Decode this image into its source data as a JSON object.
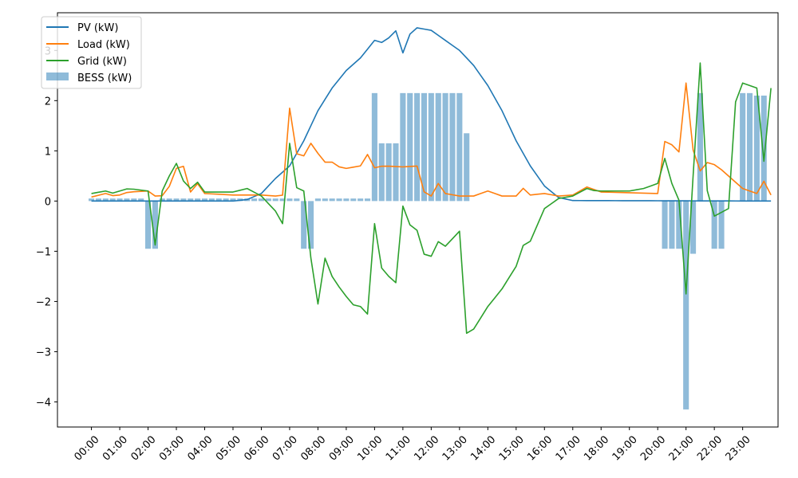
{
  "chart_data": {
    "type": "line+bar",
    "title": "",
    "xlabel": "",
    "ylabel": "",
    "ylim": [
      -4.5,
      3.75
    ],
    "xlim_hours": [
      -1.2,
      24.25
    ],
    "x_ticks": [
      "00:00",
      "01:00",
      "02:00",
      "03:00",
      "04:00",
      "05:00",
      "06:00",
      "07:00",
      "08:00",
      "09:00",
      "10:00",
      "11:00",
      "12:00",
      "13:00",
      "14:00",
      "15:00",
      "16:00",
      "17:00",
      "18:00",
      "19:00",
      "20:00",
      "21:00",
      "22:00",
      "23:00"
    ],
    "y_ticks": [
      3,
      2,
      1,
      0,
      -1,
      -2,
      -3,
      -4
    ],
    "y_tick_labels": [
      "3",
      "2",
      "1",
      "0",
      "−1",
      "−2",
      "−3",
      "−4"
    ],
    "grid": false,
    "legend": {
      "placement": "top-left",
      "entries": [
        "PV (kW)",
        "Load (kW)",
        "Grid (kW)",
        "BESS (kW)"
      ]
    },
    "colors": {
      "pv": "#1f77b4",
      "load": "#ff7f0e",
      "grid": "#2ca02c",
      "bess": "#1f77b4",
      "bess_alpha": 0.5
    },
    "series": [
      {
        "name": "PV (kW)",
        "points": [
          [
            0,
            0
          ],
          [
            5,
            0
          ],
          [
            5.5,
            0.03
          ],
          [
            6,
            0.15
          ],
          [
            6.5,
            0.45
          ],
          [
            7,
            0.7
          ],
          [
            7.5,
            1.2
          ],
          [
            8,
            1.8
          ],
          [
            8.5,
            2.25
          ],
          [
            9,
            2.6
          ],
          [
            9.5,
            2.85
          ],
          [
            10,
            3.2
          ],
          [
            10.3,
            3.15
          ],
          [
            10.6,
            3.3
          ],
          [
            10.8,
            3.42
          ],
          [
            11,
            2.95
          ],
          [
            11.2,
            3.3
          ],
          [
            11.5,
            3.45
          ],
          [
            12,
            3.4
          ],
          [
            12.5,
            3.2
          ],
          [
            13,
            3.0
          ],
          [
            13.5,
            2.7
          ],
          [
            14,
            2.3
          ],
          [
            14.5,
            1.8
          ],
          [
            15,
            1.2
          ],
          [
            15.5,
            0.7
          ],
          [
            16,
            0.3
          ],
          [
            16.5,
            0.07
          ],
          [
            17,
            0.01
          ],
          [
            24,
            0
          ]
        ]
      },
      {
        "name": "Load (kW)",
        "points": [
          [
            0,
            0.08
          ],
          [
            0.5,
            0.15
          ],
          [
            0.8,
            0.1
          ],
          [
            0.9,
            0.3
          ],
          [
            1.0,
            0.12
          ],
          [
            1.3,
            0.18
          ],
          [
            2,
            0.2
          ],
          [
            2.3,
            0.08
          ],
          [
            2.6,
            0.12
          ],
          [
            2.8,
            0.35
          ],
          [
            3,
            0.65
          ],
          [
            3.3,
            0.7
          ],
          [
            3.5,
            0.18
          ],
          [
            3.8,
            0.38
          ],
          [
            4,
            0.15
          ],
          [
            5,
            0.12
          ],
          [
            6,
            0.12
          ],
          [
            6.5,
            0.1
          ],
          [
            6.8,
            0.12
          ],
          [
            7,
            1.85
          ],
          [
            7.2,
            0.95
          ],
          [
            7.5,
            0.9
          ],
          [
            7.8,
            1.2
          ],
          [
            8,
            0.95
          ],
          [
            8.2,
            0.75
          ],
          [
            8.4,
            0.85
          ],
          [
            8.6,
            0.7
          ],
          [
            9,
            0.65
          ],
          [
            9.5,
            0.7
          ],
          [
            9.7,
            1.02
          ],
          [
            9.9,
            0.65
          ],
          [
            10.3,
            0.7
          ],
          [
            11,
            0.68
          ],
          [
            11.6,
            0.7
          ],
          [
            11.7,
            0.2
          ],
          [
            12,
            0.1
          ],
          [
            12.3,
            0.4
          ],
          [
            12.5,
            0.15
          ],
          [
            13,
            0.1
          ],
          [
            13.5,
            0.1
          ],
          [
            14,
            0.2
          ],
          [
            14.5,
            0.1
          ],
          [
            15,
            0.1
          ],
          [
            15.2,
            0.28
          ],
          [
            15.5,
            0.12
          ],
          [
            16,
            0.15
          ],
          [
            16.5,
            0.1
          ],
          [
            17,
            0.12
          ],
          [
            17.5,
            0.28
          ],
          [
            18,
            0.18
          ],
          [
            20,
            0.15
          ],
          [
            20.2,
            1.2
          ],
          [
            20.5,
            1.12
          ],
          [
            20.8,
            0.95
          ],
          [
            21,
            2.35
          ],
          [
            21.1,
            2.4
          ],
          [
            21.2,
            1.1
          ],
          [
            21.5,
            0.6
          ],
          [
            21.8,
            0.8
          ],
          [
            22.2,
            0.65
          ],
          [
            22.6,
            0.45
          ],
          [
            23,
            0.25
          ],
          [
            23.5,
            0.15
          ],
          [
            23.7,
            0.45
          ],
          [
            24,
            0.12
          ]
        ]
      },
      {
        "name": "Grid (kW)",
        "points": [
          [
            0,
            0.15
          ],
          [
            0.5,
            0.2
          ],
          [
            0.8,
            0.15
          ],
          [
            0.9,
            0.4
          ],
          [
            1.0,
            0.2
          ],
          [
            1.3,
            0.25
          ],
          [
            2,
            0.2
          ],
          [
            2.1,
            -0.85
          ],
          [
            2.4,
            -0.9
          ],
          [
            2.5,
            0.2
          ],
          [
            2.7,
            0.3
          ],
          [
            2.8,
            0.7
          ],
          [
            3,
            0.75
          ],
          [
            3.2,
            0.6
          ],
          [
            3.3,
            0.2
          ],
          [
            3.5,
            0.25
          ],
          [
            3.8,
            0.4
          ],
          [
            4,
            0.18
          ],
          [
            5,
            0.18
          ],
          [
            5.5,
            0.25
          ],
          [
            6,
            0.1
          ],
          [
            6.5,
            -0.2
          ],
          [
            6.8,
            -0.5
          ],
          [
            7,
            1.15
          ],
          [
            7.2,
            0.28
          ],
          [
            7.5,
            0.2
          ],
          [
            7.8,
            -1.4
          ],
          [
            8,
            -2.05
          ],
          [
            8.2,
            -1.05
          ],
          [
            8.4,
            -1.4
          ],
          [
            8.6,
            -1.6
          ],
          [
            9,
            -1.9
          ],
          [
            9.3,
            -2.1
          ],
          [
            9.6,
            -2.1
          ],
          [
            9.8,
            -2.3
          ],
          [
            10,
            -0.45
          ],
          [
            10.2,
            -1.3
          ],
          [
            10.5,
            -1.5
          ],
          [
            10.8,
            -1.65
          ],
          [
            11,
            -0.1
          ],
          [
            11.3,
            -0.55
          ],
          [
            11.6,
            -0.6
          ],
          [
            11.7,
            -1.05
          ],
          [
            12,
            -1.1
          ],
          [
            12.3,
            -0.75
          ],
          [
            12.5,
            -0.9
          ],
          [
            13,
            -0.6
          ],
          [
            13.2,
            -2.65
          ],
          [
            13.5,
            -2.55
          ],
          [
            14,
            -2.1
          ],
          [
            14.5,
            -1.75
          ],
          [
            15,
            -1.3
          ],
          [
            15.2,
            -0.9
          ],
          [
            15.5,
            -0.8
          ],
          [
            16,
            -0.15
          ],
          [
            16.5,
            0.05
          ],
          [
            17,
            0.1
          ],
          [
            17.5,
            0.25
          ],
          [
            17.8,
            0.2
          ],
          [
            18,
            0.2
          ],
          [
            19,
            0.2
          ],
          [
            19.5,
            0.25
          ],
          [
            20,
            0.35
          ],
          [
            20.2,
            0.95
          ],
          [
            20.5,
            0.35
          ],
          [
            20.8,
            -0.05
          ],
          [
            21,
            -1.85
          ],
          [
            21.2,
            0.05
          ],
          [
            21.5,
            2.75
          ],
          [
            21.8,
            -0.3
          ],
          [
            22,
            -0.3
          ],
          [
            22.5,
            -0.15
          ],
          [
            22.8,
            2.4
          ],
          [
            23,
            2.35
          ],
          [
            23.5,
            2.25
          ],
          [
            23.7,
            0.5
          ],
          [
            24,
            2.25
          ]
        ]
      }
    ],
    "bess": [
      {
        "from": 0,
        "to": 2,
        "value": 0.05
      },
      {
        "from": 2,
        "to": 2.35,
        "value": -0.95
      },
      {
        "from": 2.35,
        "to": 6.8,
        "value": 0.05
      },
      {
        "from": 6.8,
        "to": 6.95,
        "value": -1.0
      },
      {
        "from": 6.95,
        "to": 7.5,
        "value": 0.05
      },
      {
        "from": 7.5,
        "to": 8,
        "value": -0.95
      },
      {
        "from": 8,
        "to": 10,
        "value": 0.05
      },
      {
        "from": 10,
        "to": 10.2,
        "value": 2.15
      },
      {
        "from": 10.2,
        "to": 11,
        "value": 1.15
      },
      {
        "from": 11,
        "to": 11.7,
        "value": 2.15
      },
      {
        "from": 11.7,
        "to": 12.8,
        "value": 2.15
      },
      {
        "from": 12.8,
        "to": 13.2,
        "value": 2.15
      },
      {
        "from": 13.2,
        "to": 13.3,
        "value": 1.35
      },
      {
        "from": 20.2,
        "to": 20.8,
        "value": -0.95
      },
      {
        "from": 20.8,
        "to": 21,
        "value": -1.6
      },
      {
        "from": 21,
        "to": 21.1,
        "value": -4.15
      },
      {
        "from": 21.1,
        "to": 21.3,
        "value": -1.05
      },
      {
        "from": 21.3,
        "to": 21.6,
        "value": 2.15
      },
      {
        "from": 21.9,
        "to": 22.5,
        "value": -0.95
      },
      {
        "from": 22.8,
        "to": 23.5,
        "value": 2.15
      },
      {
        "from": 23.5,
        "to": 23.8,
        "value": 2.1
      },
      {
        "from": 23.8,
        "to": 24,
        "value": 2.15
      }
    ]
  }
}
